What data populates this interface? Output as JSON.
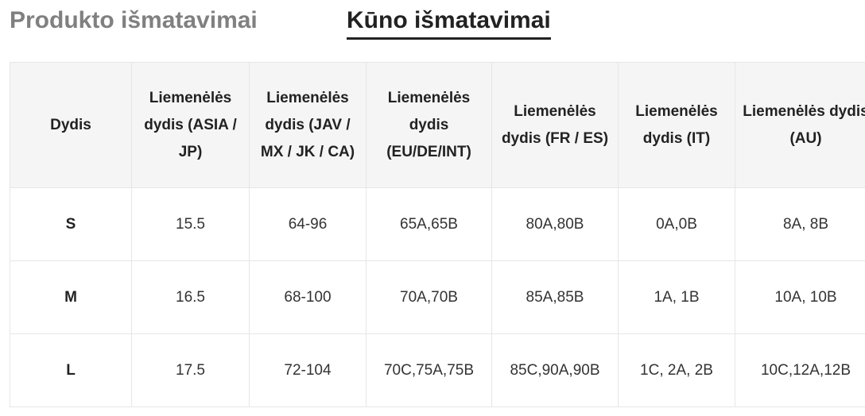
{
  "tabs": {
    "product_label": "Produkto išmatavimai",
    "body_label": "Kūno išmatavimai",
    "active": "body"
  },
  "table": {
    "headers": [
      "Dydis",
      "Liemenėlės dydis (ASIA / JP)",
      "Liemenėlės dydis (JAV / MX / JK / CA)",
      "Liemenėlės dydis (EU/DE/INT)",
      "Liemenėlės dydis (FR / ES)",
      "Liemenėlės dydis (IT)",
      "Liemenėlės dydis (AU)"
    ],
    "rows": [
      [
        "S",
        "15.5",
        "64-96",
        "65A,65B",
        "80A,80B",
        "0A,0B",
        "8A, 8B"
      ],
      [
        "M",
        "16.5",
        "68-100",
        "70A,70B",
        "85A,85B",
        "1A, 1B",
        "10A, 10B"
      ],
      [
        "L",
        "17.5",
        "72-104",
        "70C,75A,75B",
        "85C,90A,90B",
        "1C, 2A, 2B",
        "10C,12A,12B"
      ]
    ]
  },
  "colors": {
    "header_bg": "#f5f5f5",
    "border": "#e6e6e6",
    "tab_inactive": "#808080",
    "tab_active": "#222222"
  }
}
